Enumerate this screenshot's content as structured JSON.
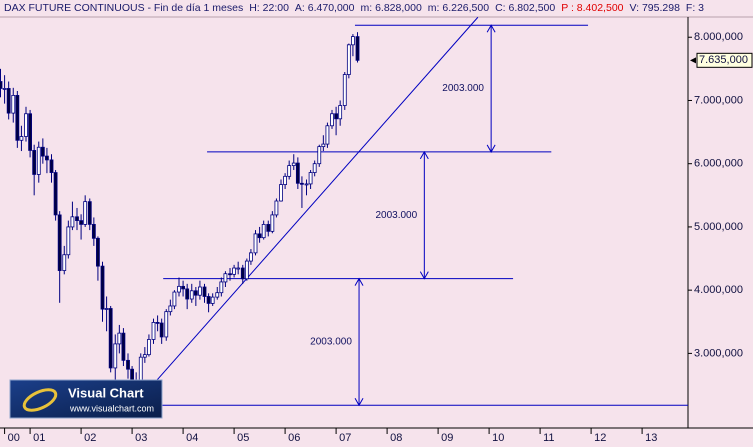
{
  "chart_data": {
    "type": "candlestick",
    "title": "DAX FUTURE CONTINUOUS - Fin de día 1 meses",
    "header_fields": [
      {
        "text": "H: 22:00"
      },
      {
        "text": "A: 6.470,000"
      },
      {
        "text": "m: 6.828,000"
      },
      {
        "text": "m: 6.226,500"
      },
      {
        "text": "C: 6.802,500"
      },
      {
        "text": "P : 8.402,500",
        "color": "#e00000"
      },
      {
        "text": "V: 795.298"
      },
      {
        "text": "F: 3"
      }
    ],
    "x": [
      2000.42,
      2000.5,
      2000.58,
      2000.67,
      2000.75,
      2000.83,
      2000.92,
      2001.0,
      2001.08,
      2001.17,
      2001.25,
      2001.33,
      2001.42,
      2001.5,
      2001.58,
      2001.67,
      2001.75,
      2001.83,
      2001.92,
      2002.0,
      2002.08,
      2002.17,
      2002.25,
      2002.33,
      2002.42,
      2002.5,
      2002.58,
      2002.67,
      2002.75,
      2002.83,
      2002.92,
      2003.0,
      2003.08,
      2003.17,
      2003.25,
      2003.33,
      2003.42,
      2003.5,
      2003.58,
      2003.67,
      2003.75,
      2003.83,
      2003.92,
      2004.0,
      2004.08,
      2004.17,
      2004.25,
      2004.33,
      2004.42,
      2004.5,
      2004.58,
      2004.67,
      2004.75,
      2004.83,
      2004.92,
      2005.0,
      2005.08,
      2005.17,
      2005.25,
      2005.33,
      2005.42,
      2005.5,
      2005.58,
      2005.67,
      2005.75,
      2005.83,
      2005.92,
      2006.0,
      2006.08,
      2006.17,
      2006.25,
      2006.33,
      2006.42,
      2006.5,
      2006.58,
      2006.67,
      2006.75,
      2006.83,
      2006.92,
      2007.0,
      2007.08,
      2007.17,
      2007.25,
      2007.33,
      2007.42
    ],
    "open": [
      7300,
      7190,
      7190,
      6800,
      7080,
      6370,
      6430,
      6790,
      6210,
      5830,
      6260,
      6120,
      6060,
      5860,
      5190,
      4310,
      4560,
      5000,
      5160,
      5100,
      5040,
      5400,
      5040,
      4820,
      4380,
      3700,
      3710,
      2770,
      3150,
      3320,
      2890,
      2750,
      2550,
      2420,
      2940,
      2980,
      3220,
      3490,
      3480,
      3260,
      3660,
      3750,
      3970,
      4060,
      4020,
      3860,
      3990,
      3920,
      4050,
      3900,
      3790,
      3890,
      3960,
      4130,
      4260,
      4250,
      4350,
      4350,
      4180,
      4460,
      4590,
      4890,
      4830,
      5040,
      4930,
      5190,
      5410,
      5670,
      5800,
      5970,
      6010,
      5690,
      5680,
      5680,
      5860,
      6000,
      6270,
      6310,
      6600,
      6790,
      6710,
      6920,
      7410,
      7880,
      8010
    ],
    "high": [
      7500,
      7400,
      7300,
      7200,
      7150,
      6600,
      6900,
      6850,
      6300,
      6350,
      6400,
      6250,
      6150,
      5900,
      5250,
      4700,
      5100,
      5400,
      5300,
      5200,
      5500,
      5450,
      5150,
      4850,
      4450,
      3900,
      3750,
      3300,
      3450,
      3400,
      3000,
      2800,
      2700,
      3000,
      3100,
      3300,
      3550,
      3600,
      3550,
      3700,
      3850,
      4000,
      4200,
      4150,
      4100,
      4100,
      4050,
      4150,
      4100,
      3950,
      3950,
      4050,
      4200,
      4300,
      4350,
      4400,
      4450,
      4400,
      4500,
      4650,
      4950,
      5000,
      5100,
      5100,
      5250,
      5450,
      5750,
      5850,
      6050,
      6150,
      6100,
      5800,
      5750,
      5900,
      6050,
      6300,
      6450,
      6650,
      6850,
      6900,
      7000,
      7450,
      7900,
      8050,
      8080
    ],
    "low": [
      7050,
      6950,
      6700,
      6650,
      6250,
      6200,
      6350,
      6100,
      5500,
      5700,
      6000,
      5850,
      5700,
      5100,
      3800,
      4250,
      4500,
      4950,
      4950,
      4800,
      5000,
      4950,
      4700,
      4150,
      3500,
      3350,
      2700,
      2550,
      3000,
      2800,
      2600,
      2400,
      2300,
      2400,
      2850,
      2950,
      3150,
      3350,
      3150,
      3200,
      3600,
      3700,
      3900,
      3900,
      3700,
      3800,
      3750,
      3850,
      3800,
      3650,
      3750,
      3850,
      3900,
      4050,
      4150,
      4200,
      4250,
      4100,
      4150,
      4400,
      4550,
      4750,
      4800,
      4850,
      4900,
      5150,
      5400,
      5600,
      5750,
      5900,
      5600,
      5300,
      5500,
      5600,
      5800,
      5950,
      6200,
      6250,
      6550,
      6450,
      6600,
      6850,
      7350,
      7700,
      7600
    ],
    "close": [
      7190,
      7190,
      6800,
      7080,
      6370,
      6430,
      6790,
      6210,
      5830,
      6260,
      6120,
      6060,
      5860,
      5190,
      4310,
      4560,
      5000,
      5160,
      5100,
      5040,
      5400,
      5040,
      4820,
      4380,
      3700,
      3710,
      2770,
      3150,
      3320,
      2890,
      2750,
      2550,
      2420,
      2940,
      2980,
      3220,
      3490,
      3480,
      3260,
      3660,
      3750,
      3970,
      4060,
      4020,
      3860,
      3990,
      3920,
      4050,
      3900,
      3790,
      3890,
      3960,
      4130,
      4260,
      4250,
      4350,
      4350,
      4180,
      4460,
      4590,
      4890,
      4830,
      5040,
      4930,
      5190,
      5410,
      5670,
      5800,
      5970,
      6010,
      5690,
      5680,
      5680,
      5860,
      6000,
      6270,
      6310,
      6600,
      6790,
      6710,
      6920,
      7410,
      7880,
      8010,
      7635
    ],
    "up_color": "#ffffff",
    "down_color": "#000040",
    "wick_color": "#000080",
    "xlim": [
      2000.41,
      2013.9
    ],
    "xticks": [
      {
        "value": 2000.5,
        "label": "00"
      },
      {
        "value": 2001,
        "label": "01"
      },
      {
        "value": 2002,
        "label": "02"
      },
      {
        "value": 2003,
        "label": "03"
      },
      {
        "value": 2004,
        "label": "04"
      },
      {
        "value": 2005,
        "label": "05"
      },
      {
        "value": 2006,
        "label": "06"
      },
      {
        "value": 2007,
        "label": "07"
      },
      {
        "value": 2008,
        "label": "08"
      },
      {
        "value": 2009,
        "label": "09"
      },
      {
        "value": 2010,
        "label": "10"
      },
      {
        "value": 2011,
        "label": "11"
      },
      {
        "value": 2012,
        "label": "12"
      },
      {
        "value": 2013,
        "label": "13"
      }
    ],
    "ylim": [
      1820,
      8320
    ],
    "yticks": [
      {
        "value": 3000,
        "label": "3.000,000"
      },
      {
        "value": 4000,
        "label": "4.000,000"
      },
      {
        "value": 5000,
        "label": "5.000,000"
      },
      {
        "value": 6000,
        "label": "6.000,000"
      },
      {
        "value": 7000,
        "label": "7.000,000"
      },
      {
        "value": 8000,
        "label": "8.000,000"
      }
    ],
    "last_price": {
      "value": 7635,
      "label": "7.635,000"
    },
    "line_color": "#0000c0",
    "levels": [
      {
        "value": 8189,
        "x": [
          2007.37,
          2011.94
        ]
      },
      {
        "value": 6186,
        "x": [
          2004.47,
          2011.22
        ]
      },
      {
        "value": 4183,
        "x": [
          2003.61,
          2010.47
        ]
      },
      {
        "value": 2180,
        "x": [
          2003.2,
          2013.9
        ]
      }
    ],
    "trendline": {
      "x": [
        2003.49,
        2009.78
      ],
      "y": [
        2580,
        8316
      ]
    },
    "measures": [
      {
        "x": 2010.04,
        "from": 8189,
        "to": 6186,
        "label": "2003.000"
      },
      {
        "x": 2008.73,
        "from": 6186,
        "to": 4183,
        "label": "2003.000"
      },
      {
        "x": 2007.45,
        "from": 4183,
        "to": 2180,
        "label": "2003.000"
      }
    ],
    "logo": {
      "name": "Visual Chart",
      "url": "www.visualchart.com"
    }
  }
}
